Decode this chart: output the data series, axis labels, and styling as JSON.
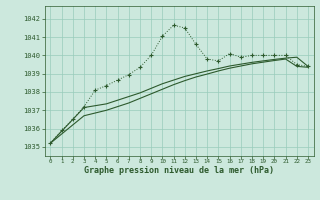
{
  "title": "Graphe pression niveau de la mer (hPa)",
  "background_color": "#cce8dd",
  "grid_color": "#99ccbb",
  "line_color": "#2d5a2d",
  "xlim": [
    -0.5,
    23.5
  ],
  "ylim": [
    1034.5,
    1042.7
  ],
  "yticks": [
    1035,
    1036,
    1037,
    1038,
    1039,
    1040,
    1041,
    1042
  ],
  "xticks": [
    0,
    1,
    2,
    3,
    4,
    5,
    6,
    7,
    8,
    9,
    10,
    11,
    12,
    13,
    14,
    15,
    16,
    17,
    18,
    19,
    20,
    21,
    22,
    23
  ],
  "series1_x": [
    0,
    1,
    2,
    3,
    4,
    5,
    6,
    7,
    8,
    9,
    10,
    11,
    12,
    13,
    14,
    15,
    16,
    17,
    18,
    19,
    20,
    21,
    22,
    23
  ],
  "series1_y": [
    1035.2,
    1035.9,
    1036.5,
    1037.2,
    1038.1,
    1038.35,
    1038.65,
    1038.95,
    1039.35,
    1040.0,
    1041.05,
    1041.65,
    1041.5,
    1040.6,
    1039.8,
    1039.7,
    1040.1,
    1039.9,
    1040.0,
    1040.0,
    1040.0,
    1040.0,
    1039.5,
    1039.4
  ],
  "series2_x": [
    0,
    3,
    4,
    5,
    6,
    7,
    8,
    9,
    10,
    11,
    12,
    13,
    14,
    15,
    16,
    17,
    18,
    19,
    20,
    21,
    22,
    23
  ],
  "series2_y": [
    1035.2,
    1037.15,
    1037.25,
    1037.35,
    1037.55,
    1037.75,
    1037.95,
    1038.2,
    1038.45,
    1038.65,
    1038.85,
    1039.0,
    1039.15,
    1039.28,
    1039.42,
    1039.52,
    1039.62,
    1039.7,
    1039.78,
    1039.85,
    1039.9,
    1039.4
  ],
  "series3_x": [
    0,
    3,
    4,
    5,
    6,
    7,
    8,
    9,
    10,
    11,
    12,
    13,
    14,
    15,
    16,
    17,
    18,
    19,
    20,
    21,
    22,
    23
  ],
  "series3_y": [
    1035.2,
    1036.7,
    1036.85,
    1037.0,
    1037.2,
    1037.4,
    1037.65,
    1037.9,
    1038.15,
    1038.4,
    1038.62,
    1038.82,
    1038.98,
    1039.15,
    1039.3,
    1039.42,
    1039.54,
    1039.63,
    1039.72,
    1039.8,
    1039.4,
    1039.35
  ]
}
